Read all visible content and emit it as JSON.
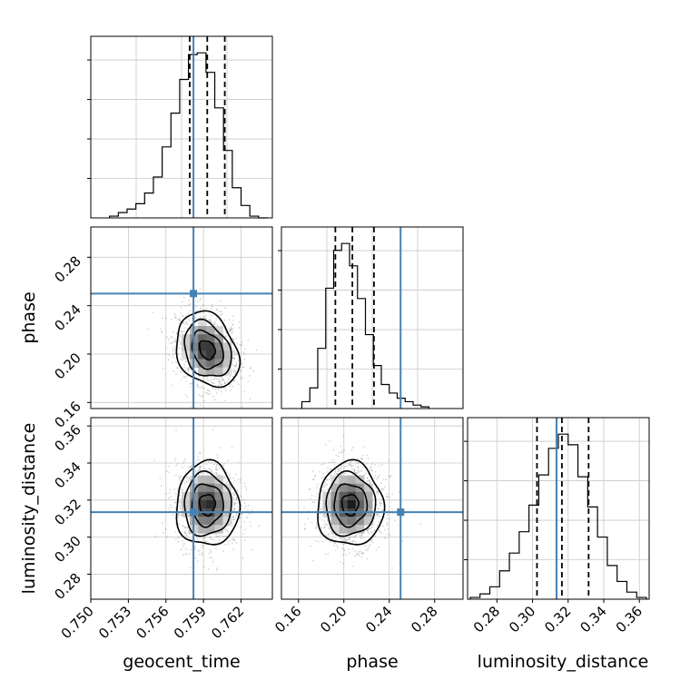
{
  "chart_data": {
    "type": "corner",
    "parameters": [
      "geocent_time",
      "phase",
      "luminosity_distance"
    ],
    "truth": {
      "geocent_time": 0.7582,
      "phase": 0.25,
      "luminosity_distance": 0.3135
    },
    "colors": {
      "truth": "#4682b4",
      "hist": "#000000",
      "grid": "#c8c8c8",
      "quantile": "#000000"
    },
    "grid": true,
    "panels": [
      {
        "id": "hist-geocent_time",
        "row": 0,
        "col": 0,
        "type": "hist1d",
        "parameter": "geocent_time",
        "xlim": [
          0.75,
          0.7645
        ],
        "quantiles": [
          0.7579,
          0.7593,
          0.7607
        ],
        "bin_edges": [
          0.7515,
          0.7522,
          0.7529,
          0.7536,
          0.7543,
          0.755,
          0.7557,
          0.7564,
          0.7571,
          0.7578,
          0.7585,
          0.7592,
          0.7599,
          0.7606,
          0.7613,
          0.762,
          0.7627,
          0.7634,
          0.7641
        ],
        "counts": [
          1,
          3,
          5,
          8,
          14,
          23,
          40,
          59,
          78,
          92,
          93,
          82,
          62,
          38,
          17,
          7,
          1,
          0
        ]
      },
      {
        "id": "contour-geocent_time-phase",
        "row": 1,
        "col": 0,
        "type": "scatter2d",
        "x_param": "geocent_time",
        "y_param": "phase",
        "xlim": [
          0.75,
          0.7645
        ],
        "ylim": [
          0.155,
          0.305
        ],
        "yticks": [
          0.16,
          0.2,
          0.24,
          0.28
        ],
        "center": [
          0.7593,
          0.2035
        ],
        "spread": [
          0.00125,
          0.0155
        ],
        "cov": -0.25,
        "contour_levels_sigma": [
          0.5,
          1.0,
          1.5,
          2.0
        ]
      },
      {
        "id": "hist-phase",
        "row": 1,
        "col": 1,
        "type": "hist1d",
        "parameter": "phase",
        "xlim": [
          0.145,
          0.305
        ],
        "quantiles": [
          0.1925,
          0.2075,
          0.2265
        ],
        "bin_edges": [
          0.163,
          0.17,
          0.177,
          0.184,
          0.191,
          0.198,
          0.205,
          0.212,
          0.219,
          0.226,
          0.233,
          0.24,
          0.247,
          0.254,
          0.261,
          0.268,
          0.275
        ],
        "counts": [
          4,
          12,
          35,
          70,
          92,
          96,
          83,
          64,
          43,
          25,
          14,
          9,
          6,
          4,
          2,
          1
        ]
      },
      {
        "id": "contour-geocent_time-luminosity_distance",
        "row": 2,
        "col": 0,
        "type": "scatter2d",
        "x_param": "geocent_time",
        "y_param": "luminosity_distance",
        "xlim": [
          0.75,
          0.7645
        ],
        "ylim": [
          0.2665,
          0.3645
        ],
        "yticks": [
          0.28,
          0.3,
          0.32,
          0.34,
          0.36
        ],
        "xticks": [
          0.75,
          0.753,
          0.756,
          0.759,
          0.762
        ],
        "center": [
          0.7593,
          0.3175
        ],
        "spread": [
          0.00125,
          0.0113
        ],
        "cov": 0.0,
        "contour_levels_sigma": [
          0.5,
          1.0,
          1.5,
          2.0
        ]
      },
      {
        "id": "contour-phase-luminosity_distance",
        "row": 2,
        "col": 1,
        "type": "scatter2d",
        "x_param": "phase",
        "y_param": "luminosity_distance",
        "xlim": [
          0.145,
          0.305
        ],
        "ylim": [
          0.2665,
          0.3645
        ],
        "xticks": [
          0.16,
          0.2,
          0.24,
          0.28
        ],
        "center": [
          0.2055,
          0.3175
        ],
        "spread": [
          0.0145,
          0.0113
        ],
        "cov": 0.0,
        "contour_levels_sigma": [
          0.5,
          1.0,
          1.5,
          2.0
        ]
      },
      {
        "id": "hist-luminosity_distance",
        "row": 2,
        "col": 2,
        "type": "hist1d",
        "parameter": "luminosity_distance",
        "xlim": [
          0.2635,
          0.3655
        ],
        "xticks": [
          0.28,
          0.3,
          0.32,
          0.34,
          0.36
        ],
        "quantiles": [
          0.3025,
          0.3165,
          0.3315
        ],
        "bin_edges": [
          0.265,
          0.2705,
          0.276,
          0.2815,
          0.287,
          0.2925,
          0.298,
          0.3035,
          0.309,
          0.3145,
          0.32,
          0.3255,
          0.331,
          0.3365,
          0.342,
          0.3475,
          0.353,
          0.3585,
          0.364
        ],
        "counts": [
          1,
          3,
          7,
          16,
          26,
          38,
          53,
          70,
          85,
          93,
          87,
          69,
          52,
          35,
          19,
          10,
          4,
          1
        ]
      }
    ]
  }
}
